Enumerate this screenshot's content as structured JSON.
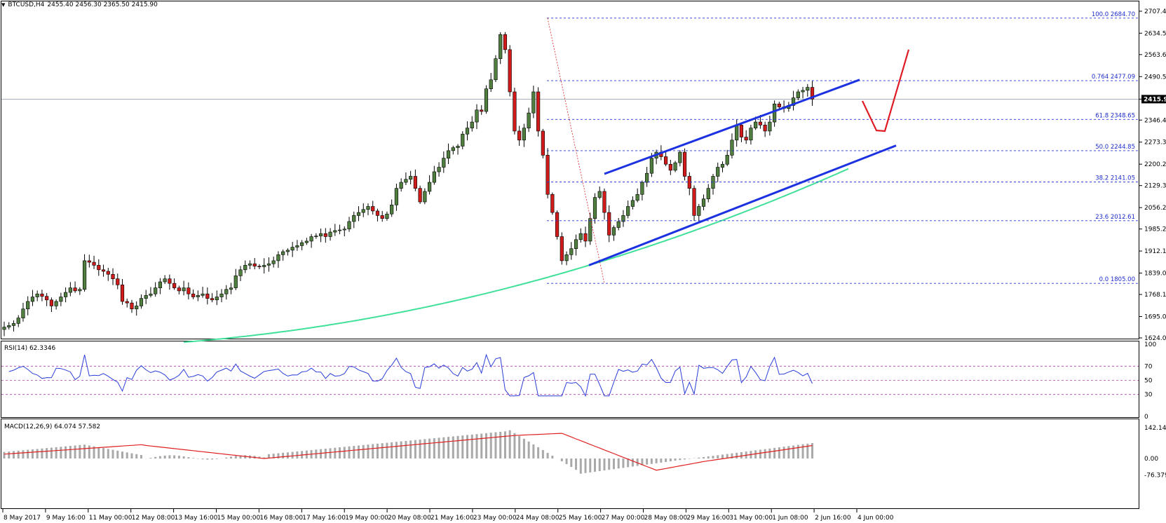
{
  "header": {
    "symbol": "BTCUSD,H4",
    "ohlc": "2455.40 2456.30 2365.50 2415.90"
  },
  "chart_data": {
    "type": "candlestick",
    "symbol": "BTCUSD",
    "timeframe": "H4",
    "current_price": 2415.9,
    "current_price_label": "2415.90",
    "price_axis_ticks": [
      "2707.40",
      "2634.55",
      "2563.60",
      "2490.55",
      "2415.90",
      "2346.45",
      "2273.35",
      "2200.25",
      "2129.30",
      "2056.20",
      "1985.25",
      "1912.15",
      "1839.05",
      "1768.10",
      "1695.00",
      "1624.05"
    ],
    "price_range": [
      1624.05,
      2707.4
    ],
    "time_axis_labels": [
      "8 May 2017",
      "9 May 16:00",
      "11 May 00:00",
      "12 May 08:00",
      "13 May 16:00",
      "15 May 00:00",
      "16 May 08:00",
      "17 May 16:00",
      "19 May 00:00",
      "20 May 08:00",
      "21 May 16:00",
      "23 May 00:00",
      "24 May 08:00",
      "25 May 16:00",
      "27 May 00:00",
      "28 May 08:00",
      "29 May 16:00",
      "31 May 00:00",
      "1 Jun 08:00",
      "2 Jun 16:00",
      "4 Jun 00:00"
    ],
    "fibonacci": [
      {
        "level": "100.0",
        "price": 2684.7,
        "label": "100.0  2684.70"
      },
      {
        "level": "0.764",
        "price": 2477.09,
        "label": "0.764  2477.09"
      },
      {
        "level": "61.8",
        "price": 2348.65,
        "label": "61.8  2348.65"
      },
      {
        "level": "50.0",
        "price": 2244.85,
        "label": "50.0  2244.85"
      },
      {
        "level": "38.2",
        "price": 2141.05,
        "label": "38.2  2141.05"
      },
      {
        "level": "23.6",
        "price": 2012.61,
        "label": "23.6  2012.61"
      },
      {
        "level": "0.0",
        "price": 1805.0,
        "label": "0.0  1805.00"
      }
    ],
    "closes": [
      1660,
      1665,
      1672,
      1690,
      1720,
      1745,
      1760,
      1770,
      1762,
      1750,
      1730,
      1745,
      1760,
      1775,
      1790,
      1780,
      1785,
      1880,
      1875,
      1865,
      1850,
      1845,
      1835,
      1820,
      1800,
      1745,
      1740,
      1720,
      1730,
      1755,
      1765,
      1770,
      1790,
      1810,
      1820,
      1805,
      1790,
      1780,
      1790,
      1770,
      1760,
      1765,
      1770,
      1755,
      1750,
      1760,
      1770,
      1785,
      1790,
      1830,
      1850,
      1865,
      1870,
      1862,
      1860,
      1865,
      1870,
      1880,
      1900,
      1910,
      1915,
      1925,
      1930,
      1940,
      1945,
      1960,
      1962,
      1970,
      1960,
      1975,
      1980,
      1982,
      1985,
      2010,
      2030,
      2040,
      2050,
      2060,
      2045,
      2030,
      2020,
      2035,
      2065,
      2120,
      2140,
      2150,
      2160,
      2120,
      2075,
      2110,
      2140,
      2175,
      2190,
      2220,
      2245,
      2255,
      2260,
      2300,
      2320,
      2340,
      2380,
      2375,
      2450,
      2480,
      2550,
      2630,
      2580,
      2440,
      2310,
      2280,
      2320,
      2370,
      2440,
      2310,
      2230,
      2100,
      2040,
      1960,
      1880,
      1900,
      1920,
      1950,
      1970,
      1945,
      2020,
      2090,
      2110,
      2040,
      1965,
      1990,
      2010,
      2030,
      2060,
      2080,
      2100,
      2140,
      2170,
      2220,
      2240,
      2225,
      2200,
      2180,
      2205,
      2240,
      2160,
      2120,
      2030,
      2060,
      2085,
      2120,
      2160,
      2190,
      2200,
      2230,
      2280,
      2330,
      2290,
      2280,
      2320,
      2340,
      2330,
      2310,
      2340,
      2400,
      2390,
      2385,
      2395,
      2420,
      2440,
      2445,
      2455,
      2415.9
    ],
    "moving_average": {
      "color": "#40e09a",
      "start": 1610,
      "end": 2185
    },
    "channel": {
      "color": "#1c32e0",
      "upper": {
        "from": 2168,
        "to": 2480
      },
      "lower": {
        "from": 1865,
        "to": 2262
      }
    },
    "projection": {
      "color": "#e01b24"
    },
    "bull_color": "#4f7e3f",
    "bear_color": "#d11a1a",
    "rsi": {
      "label": "RSI(14) 62.3346",
      "ticks": [
        "100",
        "70",
        "50",
        "30",
        "0"
      ],
      "levels": [
        70,
        50,
        30
      ],
      "color": "#2b3ed8"
    },
    "macd": {
      "label": "MACD(12,26,9) 64.074 57.582",
      "ticks": [
        "142.144",
        "0.00",
        "-76.379"
      ],
      "signal_color": "#e02020",
      "histogram_color": "#a9a9a9"
    }
  }
}
